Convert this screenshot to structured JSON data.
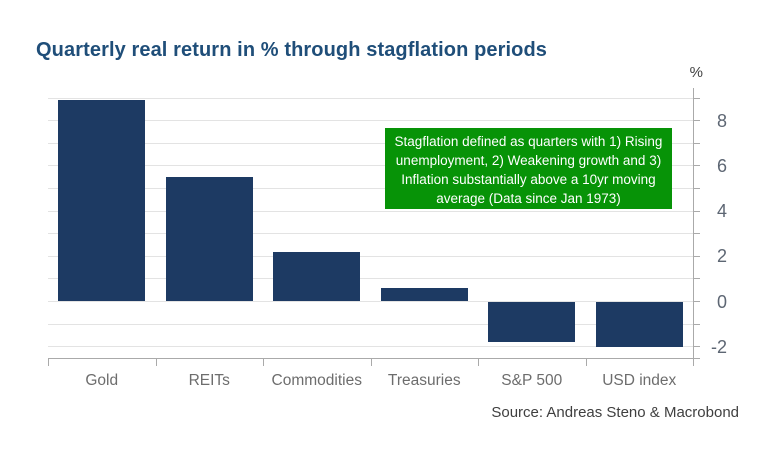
{
  "title": "Quarterly real return in % through stagflation periods",
  "axis": {
    "unit_label": "%",
    "tick_labels": [
      "8",
      "6",
      "4",
      "2",
      "0",
      "-2"
    ]
  },
  "annotation": {
    "lines": [
      "Stagflation defined as quarters with 1) Rising",
      "unemployment, 2) Weakening growth and 3)",
      "Inflation substantially above a 10yr moving",
      "average (Data since Jan 1973)"
    ]
  },
  "source": "Source: Andreas Steno & Macrobond",
  "colors": {
    "title": "#1f4e79",
    "bar": "#1d3a63",
    "annotation_bg": "#079307",
    "annotation_text": "#ffffff",
    "grid": "#e3e3e3",
    "axis_line": "#aaaaaa",
    "tick_label": "#5d6673",
    "category_label": "#6d6d6d",
    "source_text": "#3f3f3f",
    "unit_label": "#3f3f3f"
  },
  "chart_data": {
    "type": "bar",
    "title": "Quarterly real return in % through stagflation periods",
    "categories": [
      "Gold",
      "REITs",
      "Commodities",
      "Treasuries",
      "S&P 500",
      "USD index"
    ],
    "values": [
      8.9,
      5.5,
      2.2,
      0.6,
      -1.8,
      -2.0
    ],
    "xlabel": "",
    "ylabel": "%",
    "ylim": [
      -2.5,
      9.4
    ],
    "yticks_labeled": [
      8,
      6,
      4,
      2,
      0,
      -2
    ],
    "gridlines": [
      9,
      8,
      7,
      6,
      5,
      4,
      3,
      2,
      1,
      0,
      -1,
      -2
    ],
    "grid": true,
    "legend": "none",
    "axis_side": "right",
    "annotation": "Stagflation defined as quarters with 1) Rising unemployment, 2) Weakening growth and 3) Inflation substantially above a 10yr moving average (Data since Jan 1973)"
  }
}
